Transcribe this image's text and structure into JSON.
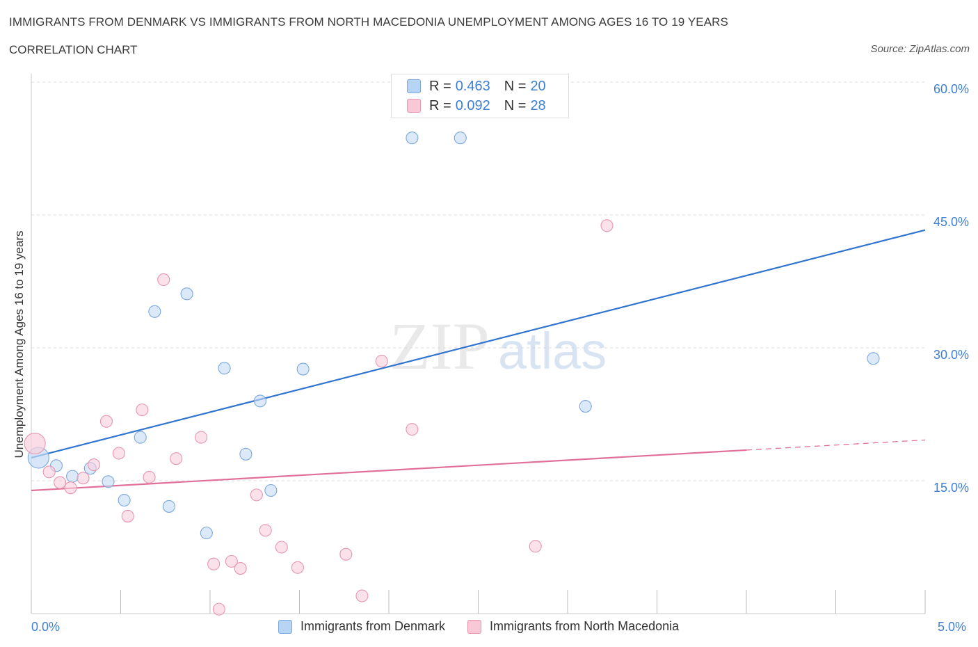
{
  "title": "IMMIGRANTS FROM DENMARK VS IMMIGRANTS FROM NORTH MACEDONIA UNEMPLOYMENT AMONG AGES 16 TO 19 YEARS",
  "subtitle": "CORRELATION CHART",
  "source": "Source: ZipAtlas.com",
  "watermark": {
    "zip": "ZIP",
    "atlas": "atlas"
  },
  "legend": {
    "r_label": "R =",
    "n_label": "N =",
    "rows": [
      {
        "r": "0.463",
        "n": "20",
        "color": "#b8d4f5",
        "stroke": "#7aa8e0"
      },
      {
        "r": "0.092",
        "n": "28",
        "color": "#f8c8d6",
        "stroke": "#e796b0"
      }
    ]
  },
  "x_tick_left": "0.0%",
  "x_tick_right": "5.0%",
  "chart_data": {
    "type": "scatter",
    "xlabel": "",
    "ylabel": "Unemployment Among Ages 16 to 19 years",
    "xlim": [
      0,
      5
    ],
    "ylim": [
      0,
      60
    ],
    "y_ticks": [
      {
        "value": 15,
        "label": "15.0%"
      },
      {
        "value": 30,
        "label": "30.0%"
      },
      {
        "value": 45,
        "label": "45.0%"
      },
      {
        "value": 60,
        "label": "60.0%"
      }
    ],
    "grid": true,
    "series": [
      {
        "name": "Immigrants from Denmark",
        "color": "#7aa8e0",
        "fill": "#c5dbf5",
        "trend": {
          "x0": 0,
          "y0": 17.6,
          "x1": 5,
          "y1": 43.3,
          "solid_to": 5
        },
        "points": [
          {
            "x": 0.04,
            "y": 17.6,
            "big": true
          },
          {
            "x": 0.14,
            "y": 16.7
          },
          {
            "x": 0.23,
            "y": 15.5
          },
          {
            "x": 0.33,
            "y": 16.4
          },
          {
            "x": 0.43,
            "y": 14.9
          },
          {
            "x": 0.52,
            "y": 12.8
          },
          {
            "x": 0.61,
            "y": 19.9
          },
          {
            "x": 0.69,
            "y": 34.1
          },
          {
            "x": 0.77,
            "y": 12.1
          },
          {
            "x": 0.87,
            "y": 36.1
          },
          {
            "x": 0.98,
            "y": 9.1
          },
          {
            "x": 1.08,
            "y": 27.7
          },
          {
            "x": 1.2,
            "y": 18.0
          },
          {
            "x": 1.28,
            "y": 24.0
          },
          {
            "x": 1.34,
            "y": 13.9
          },
          {
            "x": 1.52,
            "y": 27.6
          },
          {
            "x": 2.13,
            "y": 53.7
          },
          {
            "x": 2.4,
            "y": 53.7
          },
          {
            "x": 3.1,
            "y": 23.4
          },
          {
            "x": 4.71,
            "y": 28.8
          }
        ]
      },
      {
        "name": "Immigrants from North Macedonia",
        "color": "#e796b0",
        "fill": "#f8cfdc",
        "trend": {
          "x0": 0,
          "y0": 13.9,
          "x1": 5,
          "y1": 19.6,
          "solid_to": 4.0
        },
        "points": [
          {
            "x": 0.02,
            "y": 19.2,
            "big": true
          },
          {
            "x": 0.1,
            "y": 16.0
          },
          {
            "x": 0.16,
            "y": 14.8
          },
          {
            "x": 0.22,
            "y": 14.2
          },
          {
            "x": 0.29,
            "y": 15.3
          },
          {
            "x": 0.35,
            "y": 16.8
          },
          {
            "x": 0.42,
            "y": 21.7
          },
          {
            "x": 0.49,
            "y": 18.1
          },
          {
            "x": 0.54,
            "y": 11.0
          },
          {
            "x": 0.62,
            "y": 23.0
          },
          {
            "x": 0.66,
            "y": 15.4
          },
          {
            "x": 0.74,
            "y": 37.7
          },
          {
            "x": 0.81,
            "y": 17.5
          },
          {
            "x": 0.95,
            "y": 19.9
          },
          {
            "x": 1.02,
            "y": 5.6
          },
          {
            "x": 1.05,
            "y": 0.5
          },
          {
            "x": 1.12,
            "y": 5.9
          },
          {
            "x": 1.17,
            "y": 5.1
          },
          {
            "x": 1.26,
            "y": 13.4
          },
          {
            "x": 1.31,
            "y": 9.4
          },
          {
            "x": 1.4,
            "y": 7.5
          },
          {
            "x": 1.49,
            "y": 5.2
          },
          {
            "x": 1.76,
            "y": 6.7
          },
          {
            "x": 1.85,
            "y": 2.0
          },
          {
            "x": 1.96,
            "y": 28.5
          },
          {
            "x": 2.13,
            "y": 20.8
          },
          {
            "x": 2.82,
            "y": 7.6
          },
          {
            "x": 3.22,
            "y": 43.8
          }
        ]
      }
    ]
  }
}
